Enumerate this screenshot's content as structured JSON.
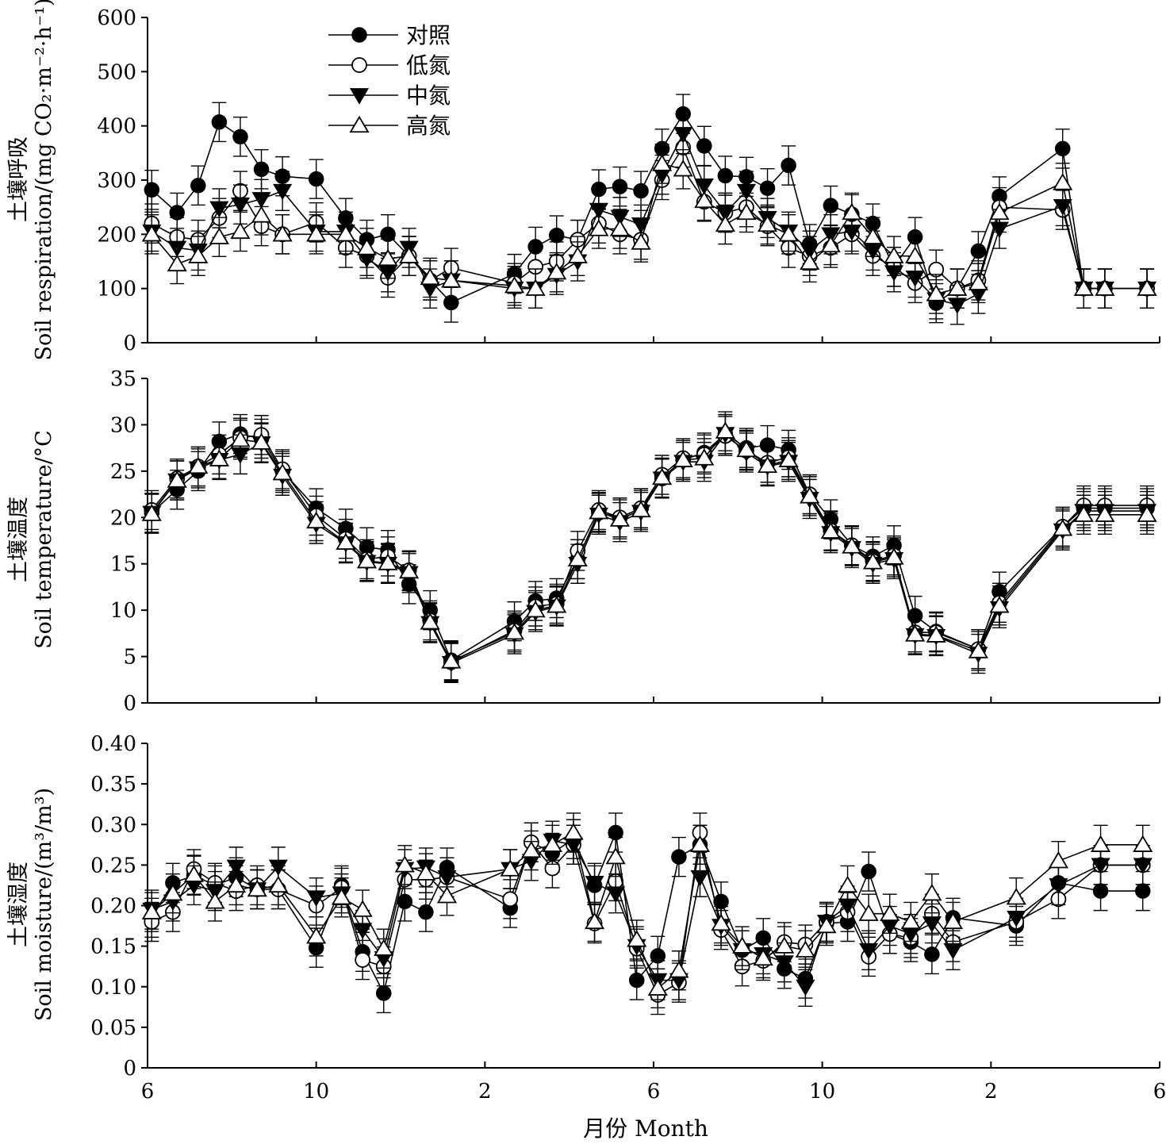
{
  "xlabel": "月份 Month",
  "x_tick_labels": [
    "6",
    "10",
    "2",
    "6",
    "10",
    "2",
    "6"
  ],
  "legend": [
    {
      "label": "对照",
      "marker": "circle-filled"
    },
    {
      "label": "低氮",
      "marker": "circle-open"
    },
    {
      "label": "中氮",
      "marker": "triangle-down-filled"
    },
    {
      "label": "高氮",
      "marker": "triangle-up-open"
    }
  ],
  "chart_data": [
    {
      "type": "line",
      "ylabel_cn": "土壤呼吸",
      "ylabel_en": "Soil respiration/(mg CO₂·m⁻²·h⁻¹)",
      "ylim": [
        0,
        600
      ],
      "yticks": [
        "0",
        "100",
        "200",
        "300",
        "400",
        "500",
        "600"
      ],
      "xlim": [
        6,
        30
      ],
      "x": [
        6.1,
        6.7,
        7.2,
        7.7,
        8.2,
        8.7,
        9.2,
        10.0,
        10.7,
        11.2,
        11.7,
        12.2,
        12.7,
        13.2,
        14.7,
        15.2,
        15.7,
        16.2,
        16.7,
        17.2,
        17.7,
        18.2,
        18.7,
        19.2,
        19.7,
        20.2,
        20.7,
        21.2,
        21.7,
        22.2,
        22.7,
        23.2,
        23.7,
        24.2,
        24.7,
        25.2,
        25.7,
        26.2,
        27.7,
        28.2,
        28.7,
        29.7
      ],
      "series": [
        {
          "name": "对照",
          "values": [
            282,
            240,
            290,
            407,
            380,
            320,
            307,
            302,
            230,
            190,
            200,
            160,
            115,
            74,
            127,
            177,
            198,
            190,
            283,
            288,
            280,
            358,
            422,
            363,
            308,
            306,
            285,
            327,
            182,
            253,
            237,
            220,
            140,
            195,
            73,
            100,
            169,
            270,
            358,
            100,
            100,
            100
          ]
        },
        {
          "name": "低氮",
          "values": [
            220,
            195,
            190,
            230,
            280,
            215,
            200,
            222,
            175,
            160,
            120,
            160,
            115,
            138,
            110,
            140,
            150,
            190,
            220,
            200,
            190,
            300,
            360,
            260,
            240,
            250,
            215,
            175,
            160,
            175,
            200,
            160,
            140,
            110,
            135,
            100,
            115,
            250,
            245,
            100,
            100,
            100
          ]
        },
        {
          "name": "中氮",
          "values": [
            205,
            175,
            170,
            248,
            255,
            265,
            280,
            205,
            205,
            155,
            130,
            175,
            100,
            115,
            100,
            100,
            125,
            150,
            245,
            232,
            218,
            310,
            385,
            290,
            240,
            280,
            230,
            205,
            170,
            200,
            205,
            170,
            130,
            120,
            80,
            70,
            90,
            210,
            252,
            100,
            100,
            100
          ]
        },
        {
          "name": "高氮",
          "values": [
            200,
            145,
            160,
            195,
            205,
            235,
            200,
            200,
            200,
            175,
            155,
            160,
            120,
            115,
            105,
            100,
            130,
            160,
            210,
            210,
            185,
            330,
            320,
            262,
            218,
            240,
            218,
            200,
            148,
            180,
            240,
            195,
            160,
            160,
            90,
            100,
            110,
            240,
            295,
            100,
            100,
            100
          ]
        }
      ]
    },
    {
      "type": "line",
      "ylabel_cn": "土壤温度",
      "ylabel_en": "Soil temperature/°C",
      "ylim": [
        0,
        35
      ],
      "yticks": [
        "0",
        "5",
        "10",
        "15",
        "20",
        "25",
        "30",
        "35"
      ],
      "xlim": [
        6,
        30
      ],
      "x": [
        6.1,
        6.7,
        7.2,
        7.7,
        8.2,
        8.7,
        9.2,
        10.0,
        10.7,
        11.2,
        11.7,
        12.2,
        12.7,
        13.2,
        14.7,
        15.2,
        15.7,
        16.2,
        16.7,
        17.2,
        17.7,
        18.2,
        18.7,
        19.2,
        19.7,
        20.2,
        20.7,
        21.2,
        21.7,
        22.2,
        22.7,
        23.2,
        23.7,
        24.2,
        24.7,
        25.7,
        26.2,
        27.7,
        28.2,
        28.7,
        29.7
      ],
      "series": [
        {
          "name": "对照",
          "values": [
            20.5,
            23.0,
            25.0,
            28.2,
            29.0,
            28.5,
            25.0,
            21.0,
            18.8,
            16.8,
            16.5,
            12.8,
            10.0,
            4.6,
            8.8,
            11.0,
            11.3,
            15.5,
            20.5,
            20.0,
            21.0,
            24.2,
            26.2,
            27.0,
            29.0,
            27.5,
            27.8,
            27.3,
            22.5,
            19.8,
            17.0,
            15.8,
            17.0,
            9.4,
            7.7,
            5.8,
            12.0,
            19.0,
            21.0,
            21.0,
            21.0
          ]
        },
        {
          "name": "低氮",
          "values": [
            20.8,
            24.2,
            25.5,
            26.8,
            28.6,
            28.9,
            25.2,
            20.2,
            17.7,
            15.5,
            15.8,
            14.3,
            8.9,
            4.4,
            7.8,
            10.4,
            10.7,
            16.4,
            20.8,
            20.0,
            21.0,
            24.6,
            26.4,
            26.8,
            28.8,
            27.2,
            25.9,
            26.5,
            22.5,
            18.6,
            17.0,
            15.3,
            15.9,
            7.6,
            7.6,
            5.8,
            10.8,
            19.0,
            21.3,
            21.3,
            21.3
          ]
        },
        {
          "name": "中氮",
          "values": [
            20.5,
            24.0,
            25.3,
            26.2,
            26.8,
            28.0,
            24.5,
            19.3,
            17.2,
            15.2,
            15.0,
            14.0,
            8.6,
            4.3,
            7.4,
            9.8,
            10.4,
            15.0,
            20.3,
            19.5,
            20.6,
            24.2,
            26.0,
            26.0,
            29.0,
            27.0,
            25.5,
            26.0,
            22.0,
            18.3,
            16.7,
            15.0,
            15.5,
            7.3,
            7.2,
            5.3,
            10.2,
            18.6,
            20.7,
            20.7,
            20.7
          ]
        },
        {
          "name": "高氮",
          "values": [
            20.4,
            24.0,
            25.5,
            26.3,
            28.4,
            28.1,
            24.8,
            19.6,
            17.3,
            15.3,
            15.1,
            14.2,
            8.7,
            4.5,
            7.6,
            10.0,
            10.5,
            15.5,
            20.6,
            19.8,
            20.8,
            24.3,
            26.2,
            26.4,
            29.3,
            27.3,
            25.6,
            26.2,
            22.3,
            18.5,
            16.9,
            15.2,
            15.7,
            7.4,
            7.3,
            5.6,
            10.5,
            18.8,
            20.3,
            20.3,
            20.3
          ]
        }
      ]
    },
    {
      "type": "line",
      "ylabel_cn": "土壤湿度",
      "ylabel_en": "Soil moisture/(m³/m³)",
      "ylim": [
        0,
        0.4
      ],
      "yticks": [
        "0",
        "0.05",
        "0.10",
        "0.15",
        "0.20",
        "0.25",
        "0.30",
        "0.35",
        "0.40"
      ],
      "xlim": [
        6,
        30
      ],
      "x": [
        6.1,
        6.6,
        7.1,
        7.6,
        8.1,
        8.6,
        9.1,
        10.0,
        10.6,
        11.1,
        11.6,
        12.1,
        12.6,
        13.1,
        14.6,
        15.1,
        15.6,
        16.1,
        16.6,
        17.1,
        17.6,
        18.1,
        18.6,
        19.1,
        19.6,
        20.1,
        20.6,
        21.1,
        21.6,
        22.1,
        22.6,
        23.1,
        23.6,
        24.1,
        24.6,
        25.1,
        26.6,
        27.6,
        28.6,
        29.6
      ],
      "series": [
        {
          "name": "对照",
          "values": [
            0.185,
            0.228,
            0.237,
            0.225,
            0.235,
            0.22,
            0.22,
            0.148,
            0.225,
            0.143,
            0.092,
            0.205,
            0.192,
            0.247,
            0.197,
            0.278,
            0.265,
            0.282,
            0.225,
            0.29,
            0.108,
            0.138,
            0.26,
            0.275,
            0.205,
            0.145,
            0.16,
            0.122,
            0.11,
            0.178,
            0.18,
            0.242,
            0.165,
            0.155,
            0.14,
            0.185,
            0.175,
            0.228,
            0.218,
            0.218
          ]
        },
        {
          "name": "低氮",
          "values": [
            0.18,
            0.192,
            0.245,
            0.228,
            0.218,
            0.225,
            0.22,
            0.2,
            0.222,
            0.133,
            0.125,
            0.232,
            0.232,
            0.235,
            0.208,
            0.278,
            0.246,
            0.275,
            0.178,
            0.23,
            0.147,
            0.09,
            0.105,
            0.29,
            0.17,
            0.125,
            0.132,
            0.155,
            0.152,
            0.18,
            0.192,
            0.137,
            0.165,
            0.16,
            0.19,
            0.155,
            0.18,
            0.208,
            0.25,
            0.25
          ]
        },
        {
          "name": "中氮",
          "values": [
            0.195,
            0.205,
            0.225,
            0.218,
            0.248,
            0.22,
            0.248,
            0.21,
            0.215,
            0.17,
            0.135,
            0.245,
            0.247,
            0.235,
            0.245,
            0.255,
            0.28,
            0.275,
            0.228,
            0.215,
            0.15,
            0.108,
            0.108,
            0.235,
            0.175,
            0.145,
            0.14,
            0.13,
            0.1,
            0.18,
            0.2,
            0.145,
            0.175,
            0.165,
            0.178,
            0.145,
            0.185,
            0.225,
            0.25,
            0.25
          ]
        },
        {
          "name": "高氮",
          "values": [
            0.192,
            0.215,
            0.238,
            0.205,
            0.225,
            0.22,
            0.225,
            0.162,
            0.21,
            0.195,
            0.147,
            0.25,
            0.24,
            0.212,
            0.245,
            0.268,
            0.275,
            0.29,
            0.18,
            0.26,
            0.158,
            0.098,
            0.12,
            0.275,
            0.178,
            0.15,
            0.135,
            0.15,
            0.145,
            0.175,
            0.225,
            0.19,
            0.19,
            0.18,
            0.215,
            0.18,
            0.21,
            0.255,
            0.275,
            0.275
          ]
        }
      ]
    }
  ]
}
